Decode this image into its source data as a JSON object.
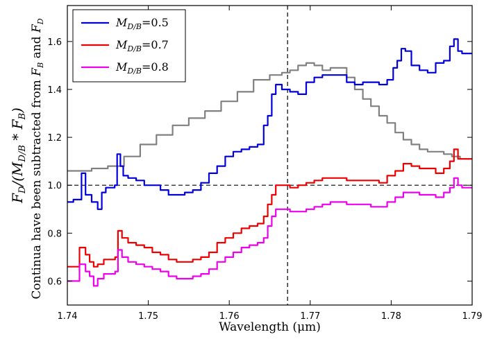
{
  "chart_data": {
    "type": "line",
    "title": "",
    "xlabel": "Wavelength (μm)",
    "ylabel_line1": "F_D/(M_D/B * F_B)",
    "ylabel_line2": "Continua have been subtracted from F_B and F_D",
    "xlim": [
      1.74,
      1.79
    ],
    "ylim": [
      0.5,
      1.75
    ],
    "xticks": [
      "1.74",
      "1.75",
      "1.76",
      "1.77",
      "1.78",
      "1.79"
    ],
    "yticks": [
      "0.6",
      "0.8",
      "1.0",
      "1.2",
      "1.4",
      "1.6"
    ],
    "xtick_values": [
      1.74,
      1.75,
      1.76,
      1.77,
      1.78,
      1.79
    ],
    "ytick_values": [
      0.6,
      0.8,
      1.0,
      1.2,
      1.4,
      1.6
    ],
    "grid": false,
    "legend_position": "top-left",
    "reference_lines": {
      "vertical_x": 1.7672,
      "horizontal_y": 1.0
    },
    "series": [
      {
        "name": "M_D/B=0.5",
        "legend": "M_D/B=0.5",
        "color": "#0000dd",
        "x": [
          1.74,
          1.7415,
          1.742,
          1.7425,
          1.7435,
          1.744,
          1.7445,
          1.745,
          1.7457,
          1.746,
          1.7463,
          1.7468,
          1.747,
          1.748,
          1.749,
          1.75,
          1.751,
          1.752,
          1.753,
          1.754,
          1.755,
          1.756,
          1.757,
          1.758,
          1.759,
          1.76,
          1.761,
          1.762,
          1.763,
          1.764,
          1.7645,
          1.765,
          1.7655,
          1.766,
          1.767,
          1.768,
          1.769,
          1.77,
          1.771,
          1.772,
          1.773,
          1.774,
          1.775,
          1.776,
          1.777,
          1.778,
          1.779,
          1.78,
          1.7805,
          1.781,
          1.7815,
          1.782,
          1.783,
          1.784,
          1.785,
          1.786,
          1.787,
          1.7875,
          1.788,
          1.7885,
          1.789,
          1.79
        ],
        "y": [
          0.93,
          0.94,
          1.05,
          0.96,
          0.93,
          0.9,
          0.97,
          0.99,
          0.99,
          1.0,
          1.13,
          1.08,
          1.04,
          1.03,
          1.02,
          1.0,
          1.0,
          0.98,
          0.96,
          0.96,
          0.97,
          0.98,
          1.01,
          1.05,
          1.08,
          1.12,
          1.14,
          1.15,
          1.16,
          1.17,
          1.25,
          1.29,
          1.38,
          1.42,
          1.4,
          1.39,
          1.38,
          1.43,
          1.45,
          1.46,
          1.46,
          1.46,
          1.43,
          1.42,
          1.43,
          1.43,
          1.42,
          1.44,
          1.49,
          1.52,
          1.57,
          1.56,
          1.5,
          1.48,
          1.47,
          1.51,
          1.52,
          1.58,
          1.61,
          1.56,
          1.55,
          1.55
        ]
      },
      {
        "name": "M_D/B=0.7",
        "legend": "M_D/B=0.7",
        "color": "#ee0000",
        "x": [
          1.74,
          1.741,
          1.742,
          1.7425,
          1.743,
          1.7435,
          1.744,
          1.745,
          1.7458,
          1.746,
          1.7465,
          1.747,
          1.748,
          1.749,
          1.75,
          1.751,
          1.752,
          1.753,
          1.754,
          1.755,
          1.756,
          1.757,
          1.758,
          1.759,
          1.76,
          1.761,
          1.762,
          1.763,
          1.764,
          1.7645,
          1.765,
          1.7655,
          1.766,
          1.767,
          1.768,
          1.769,
          1.77,
          1.771,
          1.772,
          1.773,
          1.774,
          1.775,
          1.776,
          1.777,
          1.778,
          1.779,
          1.78,
          1.781,
          1.782,
          1.783,
          1.784,
          1.785,
          1.786,
          1.787,
          1.7875,
          1.788,
          1.7885,
          1.789,
          1.79
        ],
        "y": [
          0.66,
          0.66,
          0.74,
          0.71,
          0.68,
          0.66,
          0.67,
          0.69,
          0.69,
          0.7,
          0.81,
          0.78,
          0.76,
          0.75,
          0.74,
          0.72,
          0.71,
          0.69,
          0.68,
          0.68,
          0.69,
          0.7,
          0.72,
          0.76,
          0.78,
          0.8,
          0.82,
          0.83,
          0.84,
          0.87,
          0.92,
          0.96,
          1.0,
          1.0,
          0.99,
          1.0,
          1.01,
          1.02,
          1.03,
          1.03,
          1.03,
          1.02,
          1.02,
          1.02,
          1.02,
          1.01,
          1.04,
          1.06,
          1.09,
          1.08,
          1.07,
          1.07,
          1.05,
          1.07,
          1.1,
          1.15,
          1.11,
          1.11,
          1.11
        ]
      },
      {
        "name": "M_D/B=0.8",
        "legend": "M_D/B=0.8",
        "color": "#ee00ee",
        "x": [
          1.74,
          1.741,
          1.742,
          1.7425,
          1.743,
          1.7435,
          1.744,
          1.745,
          1.7458,
          1.746,
          1.7465,
          1.747,
          1.748,
          1.749,
          1.75,
          1.751,
          1.752,
          1.753,
          1.754,
          1.755,
          1.756,
          1.757,
          1.758,
          1.759,
          1.76,
          1.761,
          1.762,
          1.763,
          1.764,
          1.7645,
          1.765,
          1.7655,
          1.766,
          1.767,
          1.768,
          1.769,
          1.77,
          1.771,
          1.772,
          1.773,
          1.774,
          1.775,
          1.776,
          1.777,
          1.778,
          1.779,
          1.78,
          1.781,
          1.782,
          1.783,
          1.784,
          1.785,
          1.786,
          1.787,
          1.7875,
          1.788,
          1.7885,
          1.789,
          1.79
        ],
        "y": [
          0.6,
          0.6,
          0.67,
          0.64,
          0.62,
          0.58,
          0.61,
          0.63,
          0.63,
          0.64,
          0.73,
          0.7,
          0.68,
          0.67,
          0.66,
          0.65,
          0.64,
          0.62,
          0.61,
          0.61,
          0.62,
          0.63,
          0.65,
          0.68,
          0.7,
          0.72,
          0.74,
          0.75,
          0.76,
          0.78,
          0.83,
          0.87,
          0.9,
          0.9,
          0.89,
          0.89,
          0.9,
          0.91,
          0.92,
          0.93,
          0.93,
          0.92,
          0.92,
          0.92,
          0.91,
          0.91,
          0.93,
          0.95,
          0.97,
          0.97,
          0.96,
          0.96,
          0.95,
          0.97,
          0.99,
          1.03,
          1.0,
          0.99,
          0.99
        ]
      },
      {
        "color": "#808080",
        "x": [
          1.74,
          1.742,
          1.744,
          1.746,
          1.748,
          1.75,
          1.752,
          1.754,
          1.756,
          1.758,
          1.76,
          1.762,
          1.764,
          1.766,
          1.767,
          1.768,
          1.769,
          1.77,
          1.771,
          1.772,
          1.773,
          1.774,
          1.775,
          1.776,
          1.777,
          1.778,
          1.779,
          1.78,
          1.781,
          1.782,
          1.783,
          1.784,
          1.785,
          1.786,
          1.787,
          1.788,
          1.789,
          1.79
        ],
        "y": [
          1.06,
          1.06,
          1.07,
          1.08,
          1.12,
          1.17,
          1.21,
          1.25,
          1.28,
          1.31,
          1.35,
          1.39,
          1.44,
          1.46,
          1.47,
          1.48,
          1.5,
          1.51,
          1.5,
          1.48,
          1.49,
          1.49,
          1.45,
          1.4,
          1.36,
          1.33,
          1.29,
          1.26,
          1.22,
          1.19,
          1.17,
          1.15,
          1.14,
          1.14,
          1.13,
          1.12,
          1.11,
          1.11
        ]
      }
    ]
  }
}
